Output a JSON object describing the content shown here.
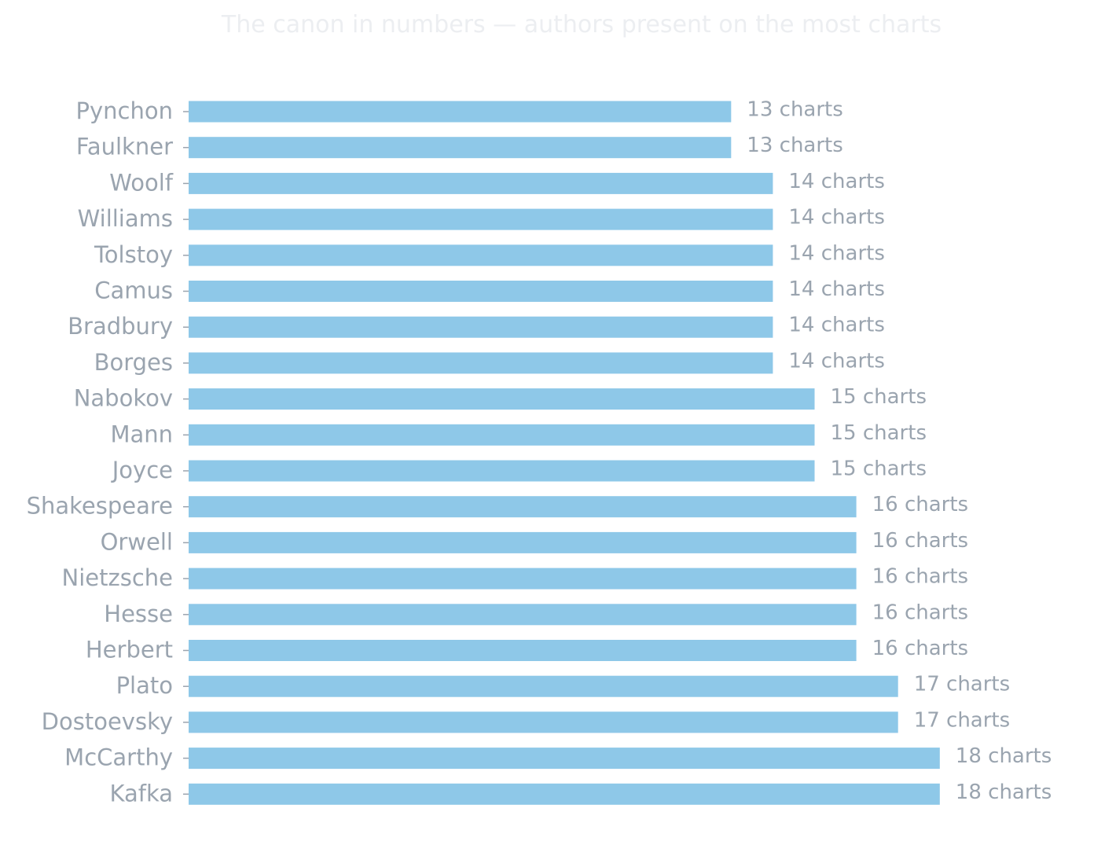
{
  "chart_data": {
    "type": "bar",
    "orientation": "horizontal",
    "title": "The canon in numbers — authors present on the most charts",
    "categories": [
      "Pynchon",
      "Faulkner",
      "Woolf",
      "Williams",
      "Tolstoy",
      "Camus",
      "Bradbury",
      "Borges",
      "Nabokov",
      "Mann",
      "Joyce",
      "Shakespeare",
      "Orwell",
      "Nietzsche",
      "Hesse",
      "Herbert",
      "Plato",
      "Dostoevsky",
      "McCarthy",
      "Kafka"
    ],
    "values": [
      13,
      13,
      14,
      14,
      14,
      14,
      14,
      14,
      15,
      15,
      15,
      16,
      16,
      16,
      16,
      16,
      17,
      17,
      18,
      18
    ],
    "value_labels": [
      "13 charts",
      "13 charts",
      "14 charts",
      "14 charts",
      "14 charts",
      "14 charts",
      "14 charts",
      "14 charts",
      "15 charts",
      "15 charts",
      "15 charts",
      "16 charts",
      "16 charts",
      "16 charts",
      "16 charts",
      "16 charts",
      "17 charts",
      "17 charts",
      "18 charts",
      "18 charts"
    ],
    "xlim": [
      0,
      18
    ],
    "bar_color": "#8ec8e8",
    "label_color": "#9aa4af",
    "title_color": "#eceef1",
    "grid": false,
    "legend": "none"
  }
}
